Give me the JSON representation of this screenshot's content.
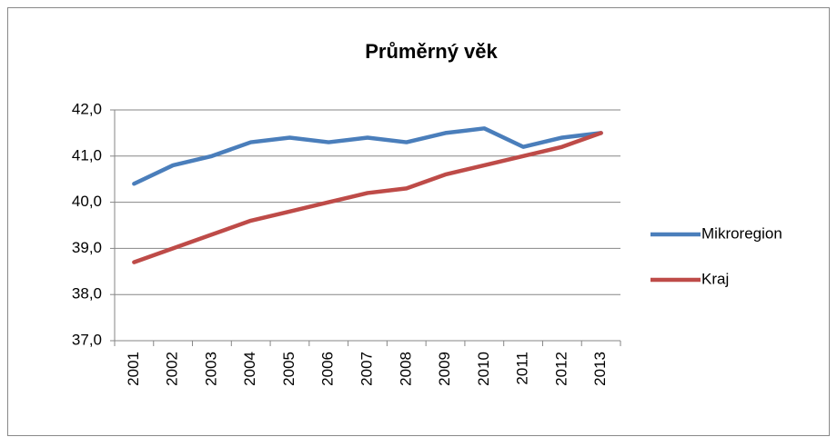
{
  "chart_data": {
    "type": "line",
    "title": "Průměrný věk",
    "categories": [
      "2001",
      "2002",
      "2003",
      "2004",
      "2005",
      "2006",
      "2007",
      "2008",
      "2009",
      "2010",
      "2011",
      "2012",
      "2013"
    ],
    "series": [
      {
        "name": "Mikroregion",
        "color": "#4a7ebb",
        "values": [
          40.4,
          40.8,
          41.0,
          41.3,
          41.4,
          41.3,
          41.4,
          41.3,
          41.5,
          41.6,
          41.2,
          41.4,
          41.5
        ]
      },
      {
        "name": "Kraj",
        "color": "#be4b48",
        "values": [
          38.7,
          39.0,
          39.3,
          39.6,
          39.8,
          40.0,
          40.2,
          40.3,
          40.6,
          40.8,
          41.0,
          41.2,
          41.5
        ]
      }
    ],
    "ylim": [
      37,
      42
    ],
    "yticks": [
      {
        "value": 37,
        "label": "37,0"
      },
      {
        "value": 38,
        "label": "38,0"
      },
      {
        "value": 39,
        "label": "39,0"
      },
      {
        "value": 40,
        "label": "40,0"
      },
      {
        "value": 41,
        "label": "41,0"
      },
      {
        "value": 42,
        "label": "42,0"
      }
    ],
    "grid": true,
    "legend": "right"
  }
}
